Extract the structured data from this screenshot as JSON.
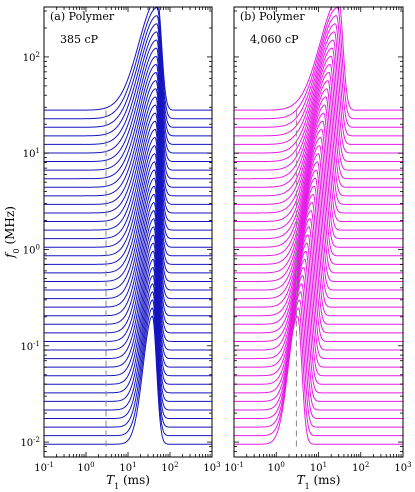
{
  "chart_data": [
    {
      "type": "line",
      "panel_label": "(a) Polymer",
      "viscosity_label": "385 cP",
      "color": "#1515bf",
      "xlabel": "T1 (ms)",
      "ylabel": "f0 (MHz)",
      "x_scale": "log",
      "y_scale": "log",
      "xlim": [
        0.1,
        1000
      ],
      "ylim": [
        0.007,
        330
      ],
      "xticks": [
        "10^-1",
        "10^0",
        "10^1",
        "10^2",
        "10^3"
      ],
      "yticks": [
        "10^-2",
        "10^-1",
        "10^0",
        "10^1",
        "10^2"
      ],
      "grid": false,
      "reference_line_T1": 3.0,
      "curve_count": 40,
      "baseline_f0_range": [
        0.0095,
        28
      ],
      "peak_T1_range": [
        38,
        50
      ],
      "peak_f0_max": 300
    },
    {
      "type": "line",
      "panel_label": "(b) Polymer",
      "viscosity_label": "4,060 cP",
      "color": "#e619e6",
      "xlabel": "T1 (ms)",
      "ylabel": "",
      "x_scale": "log",
      "y_scale": "log",
      "xlim": [
        0.1,
        1000
      ],
      "ylim": [
        0.007,
        330
      ],
      "xticks": [
        "10^-1",
        "10^0",
        "10^1",
        "10^2",
        "10^3"
      ],
      "yticks": [
        "10^-2",
        "10^-1",
        "10^0",
        "10^1",
        "10^2"
      ],
      "grid": false,
      "reference_line_T1": 3.0,
      "curve_count": 40,
      "baseline_f0_range": [
        0.0095,
        28
      ],
      "peak_T1_range": [
        3.2,
        30
      ],
      "peak_f0_max": 300
    }
  ]
}
